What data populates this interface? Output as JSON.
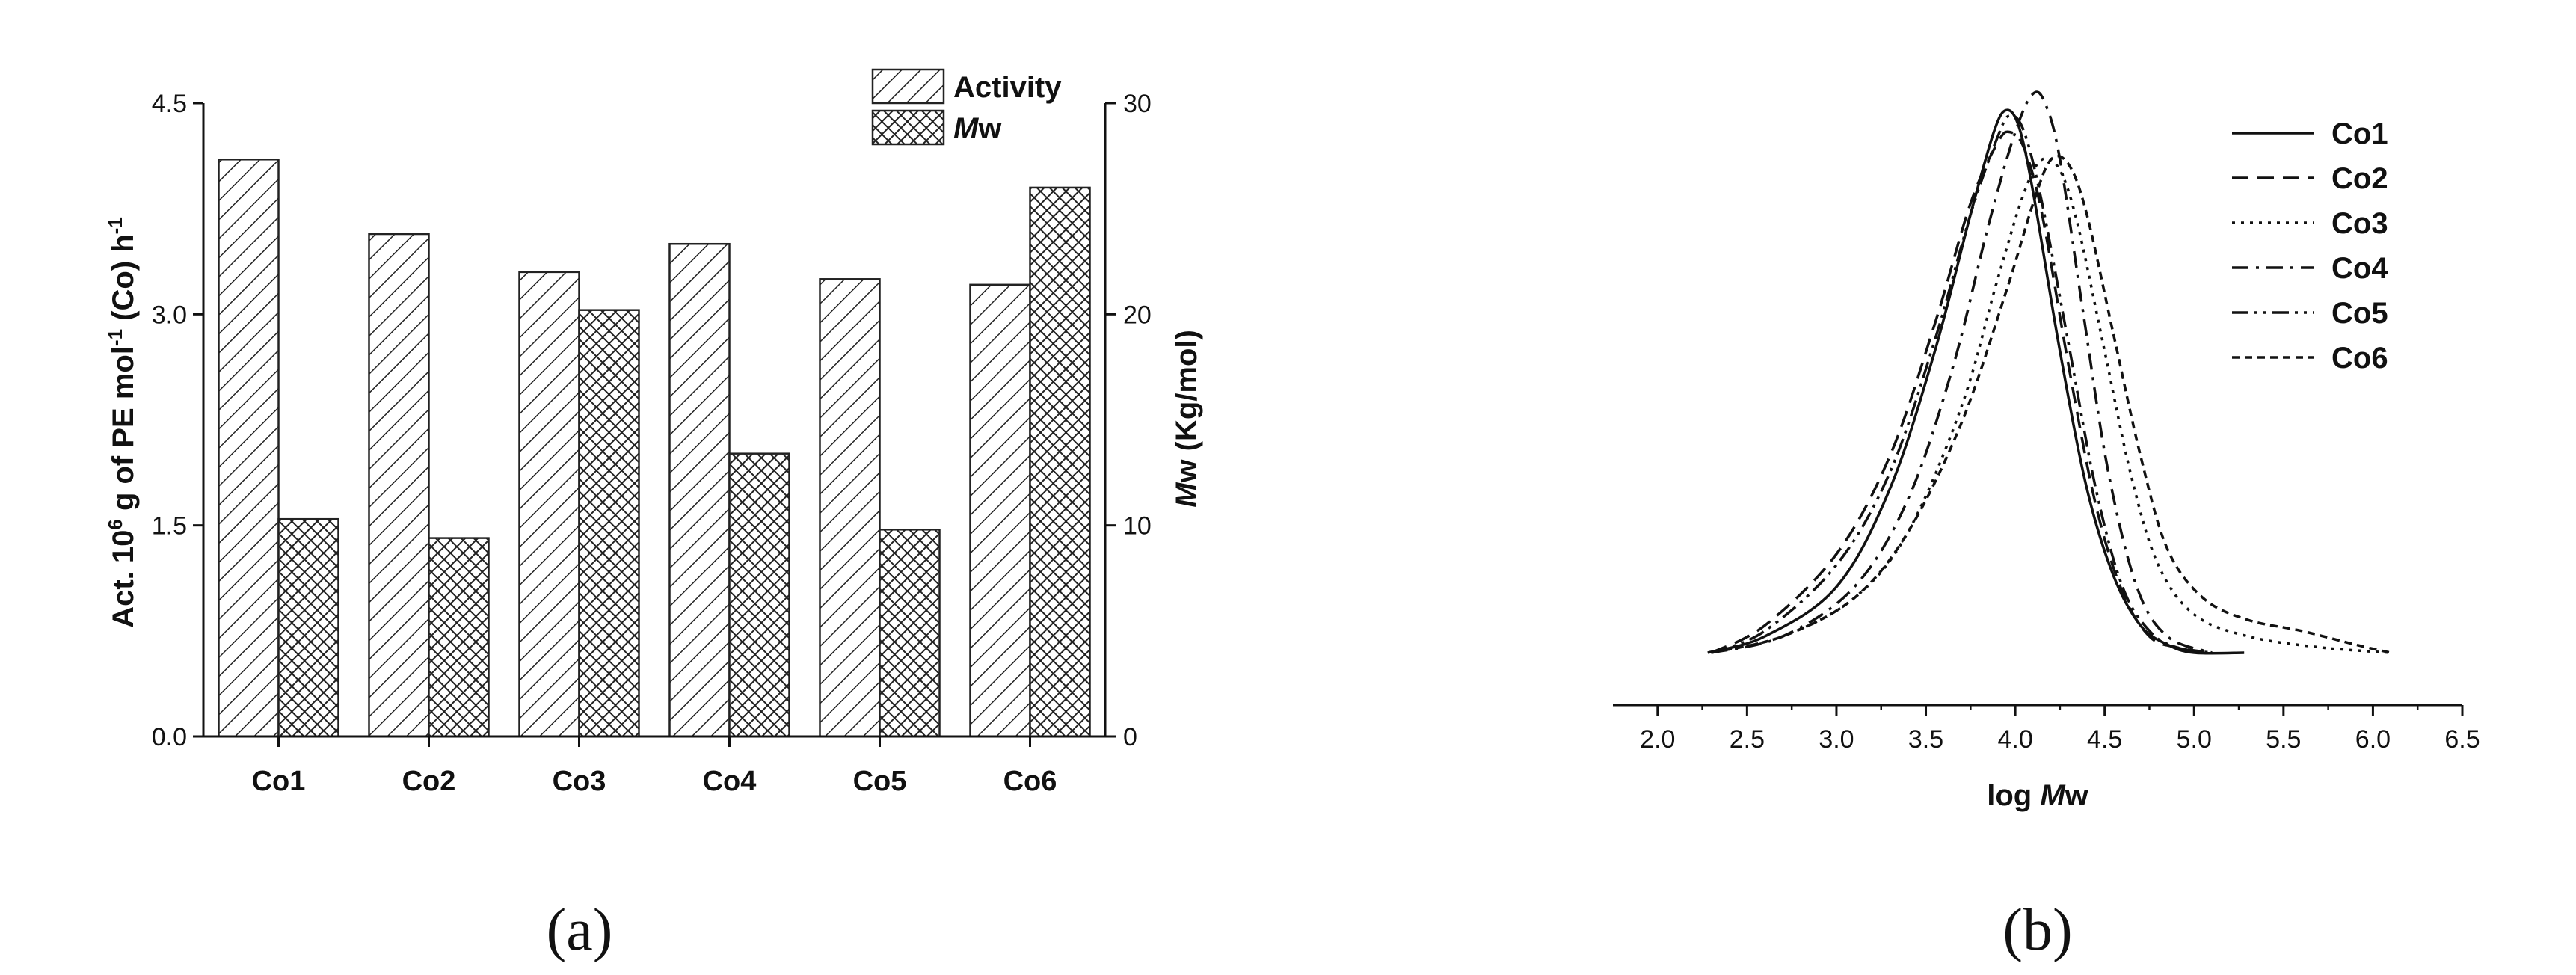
{
  "chart_data": [
    {
      "type": "bar",
      "panel_label": "(a)",
      "categories": [
        "Co1",
        "Co2",
        "Co3",
        "Co4",
        "Co5",
        "Co6"
      ],
      "series": [
        {
          "name": "Activity",
          "axis": "left",
          "pattern": "diagonal-hatch",
          "values": [
            4.1,
            3.57,
            3.3,
            3.5,
            3.25,
            3.21
          ]
        },
        {
          "name": "Mw",
          "axis": "right",
          "pattern": "crosshatch",
          "values": [
            10.3,
            9.4,
            20.2,
            13.4,
            9.8,
            26.0
          ]
        }
      ],
      "ylabel_left": "Act. 10^6 g of PE mol^-1 (Co) h^-1",
      "ylabel_left_parts": {
        "a": "Act. 10",
        "b": "6",
        "c": " g of PE mol",
        "d": "-1",
        "e": " (Co) h",
        "f": "-1"
      },
      "ylabel_right": "Mw (Kg/mol)",
      "ylabel_right_parts": {
        "a": "M",
        "b": "w (Kg/mol)"
      },
      "ylim_left": [
        0,
        4.5
      ],
      "ylim_right": [
        0,
        30
      ],
      "yticks_left": [
        "0.0",
        "1.5",
        "3.0",
        "4.5"
      ],
      "yticks_right": [
        "0",
        "10",
        "20",
        "30"
      ],
      "legend": [
        {
          "label": "Activity",
          "pattern": "diagonal-hatch"
        },
        {
          "label_italic": "M",
          "label_rest": "w",
          "pattern": "crosshatch"
        }
      ],
      "legend_position": "top-right"
    },
    {
      "type": "line",
      "panel_label": "(b)",
      "xlabel_parts": {
        "a": "log ",
        "b": "M",
        "c": "w"
      },
      "xlim": [
        1.75,
        6.5
      ],
      "xticks": [
        "2.0",
        "2.5",
        "3.0",
        "3.5",
        "4.0",
        "4.5",
        "5.0",
        "5.5",
        "6.0",
        "6.5"
      ],
      "ylim": [
        0,
        1.0
      ],
      "legend_position": "top-right",
      "series": [
        {
          "name": "Co1",
          "dash": "solid",
          "x": [
            2.28,
            2.6,
            3.0,
            3.3,
            3.55,
            3.75,
            3.88,
            3.95,
            4.02,
            4.1,
            4.25,
            4.4,
            4.55,
            4.7,
            4.85,
            5.0,
            5.28
          ],
          "y": [
            0.0,
            0.03,
            0.12,
            0.3,
            0.55,
            0.8,
            0.95,
            0.99,
            0.96,
            0.84,
            0.55,
            0.3,
            0.14,
            0.05,
            0.015,
            0.0,
            0.0
          ]
        },
        {
          "name": "Co2",
          "dash": "dashed",
          "x": [
            2.3,
            2.6,
            3.0,
            3.3,
            3.55,
            3.75,
            3.9,
            3.97,
            4.05,
            4.15,
            4.3,
            4.45,
            4.6,
            4.75,
            4.9,
            5.1
          ],
          "y": [
            0.0,
            0.05,
            0.18,
            0.36,
            0.6,
            0.82,
            0.93,
            0.95,
            0.92,
            0.8,
            0.52,
            0.27,
            0.11,
            0.03,
            0.01,
            0.0
          ]
        },
        {
          "name": "Co3",
          "dash": "dotted",
          "x": [
            2.3,
            2.7,
            3.1,
            3.4,
            3.7,
            3.9,
            4.05,
            4.15,
            4.25,
            4.35,
            4.5,
            4.65,
            4.8,
            5.0,
            5.3,
            5.7,
            6.1
          ],
          "y": [
            0.0,
            0.03,
            0.1,
            0.22,
            0.45,
            0.68,
            0.84,
            0.9,
            0.88,
            0.78,
            0.55,
            0.32,
            0.16,
            0.07,
            0.03,
            0.01,
            0.0
          ]
        },
        {
          "name": "Co4",
          "dash": "dashdot",
          "x": [
            2.3,
            2.7,
            3.1,
            3.4,
            3.65,
            3.85,
            4.0,
            4.1,
            4.17,
            4.25,
            4.38,
            4.52,
            4.68,
            4.85,
            5.1
          ],
          "y": [
            0.0,
            0.03,
            0.12,
            0.28,
            0.52,
            0.78,
            0.95,
            1.02,
            1.0,
            0.9,
            0.62,
            0.33,
            0.12,
            0.03,
            0.0
          ]
        },
        {
          "name": "Co5",
          "dash": "dashdotdot",
          "x": [
            2.3,
            2.6,
            3.0,
            3.3,
            3.55,
            3.75,
            3.9,
            3.97,
            4.05,
            4.15,
            4.3,
            4.45,
            4.6,
            4.75,
            4.9,
            5.1
          ],
          "y": [
            0.0,
            0.04,
            0.16,
            0.33,
            0.57,
            0.8,
            0.94,
            0.98,
            0.95,
            0.82,
            0.56,
            0.3,
            0.12,
            0.04,
            0.01,
            0.0
          ]
        },
        {
          "name": "Co6",
          "dash": "shortdash",
          "x": [
            2.3,
            2.7,
            3.1,
            3.4,
            3.7,
            3.95,
            4.1,
            4.2,
            4.3,
            4.4,
            4.55,
            4.7,
            4.85,
            5.05,
            5.3,
            5.6,
            5.9,
            6.1
          ],
          "y": [
            0.0,
            0.03,
            0.1,
            0.22,
            0.42,
            0.66,
            0.82,
            0.9,
            0.89,
            0.8,
            0.58,
            0.36,
            0.19,
            0.1,
            0.06,
            0.04,
            0.015,
            0.0
          ]
        }
      ]
    }
  ]
}
